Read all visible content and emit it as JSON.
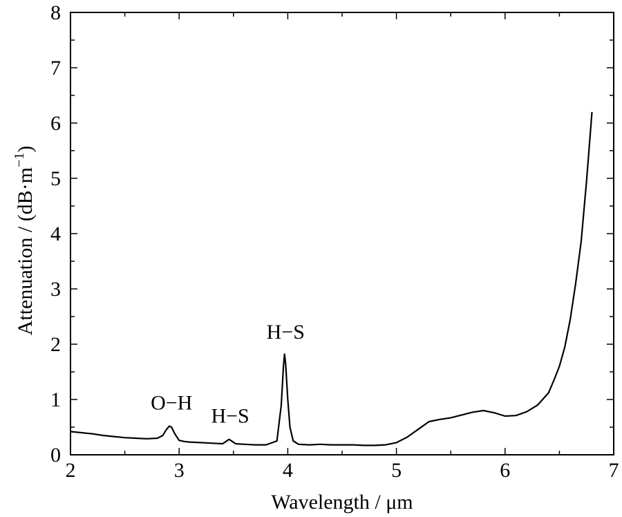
{
  "chart_data": {
    "type": "line",
    "title": "",
    "xlabel": "Wavelength / μm",
    "ylabel_parts": {
      "main": "Attenuation / (dB·m",
      "sup": "−1",
      "close": ")"
    },
    "xlim": [
      2,
      7
    ],
    "ylim": [
      0,
      8
    ],
    "x_ticks": [
      "2",
      "3",
      "4",
      "5",
      "6",
      "7"
    ],
    "y_ticks": [
      "0",
      "1",
      "2",
      "3",
      "4",
      "5",
      "6",
      "7",
      "8"
    ],
    "grid": false,
    "series": [
      {
        "x": [
          2.0,
          2.1,
          2.2,
          2.3,
          2.4,
          2.5,
          2.6,
          2.7,
          2.8,
          2.85,
          2.88,
          2.91,
          2.93,
          2.96,
          3.0,
          3.05,
          3.1,
          3.2,
          3.3,
          3.4,
          3.43,
          3.46,
          3.49,
          3.52,
          3.6,
          3.7,
          3.8,
          3.9,
          3.94,
          3.96,
          3.97,
          3.98,
          4.0,
          4.02,
          4.05,
          4.1,
          4.2,
          4.3,
          4.4,
          4.5,
          4.6,
          4.7,
          4.8,
          4.9,
          5.0,
          5.1,
          5.2,
          5.3,
          5.4,
          5.5,
          5.6,
          5.7,
          5.8,
          5.9,
          6.0,
          6.1,
          6.2,
          6.3,
          6.4,
          6.45,
          6.5,
          6.55,
          6.6,
          6.65,
          6.7,
          6.75,
          6.8
        ],
        "y": [
          0.42,
          0.4,
          0.38,
          0.35,
          0.33,
          0.31,
          0.3,
          0.29,
          0.3,
          0.35,
          0.45,
          0.52,
          0.5,
          0.38,
          0.26,
          0.24,
          0.23,
          0.22,
          0.21,
          0.2,
          0.24,
          0.28,
          0.24,
          0.2,
          0.19,
          0.18,
          0.18,
          0.25,
          0.9,
          1.6,
          1.82,
          1.65,
          1.0,
          0.5,
          0.25,
          0.19,
          0.18,
          0.19,
          0.18,
          0.18,
          0.18,
          0.17,
          0.17,
          0.18,
          0.22,
          0.32,
          0.46,
          0.6,
          0.64,
          0.67,
          0.72,
          0.77,
          0.8,
          0.76,
          0.7,
          0.71,
          0.78,
          0.9,
          1.12,
          1.35,
          1.6,
          1.95,
          2.45,
          3.1,
          3.85,
          4.95,
          6.2
        ]
      }
    ],
    "annotations": [
      {
        "text": "O−H",
        "x": 2.93,
        "y": 0.82
      },
      {
        "text": "H−S",
        "x": 3.47,
        "y": 0.58
      },
      {
        "text": "H−S",
        "x": 3.98,
        "y": 2.1
      }
    ]
  }
}
